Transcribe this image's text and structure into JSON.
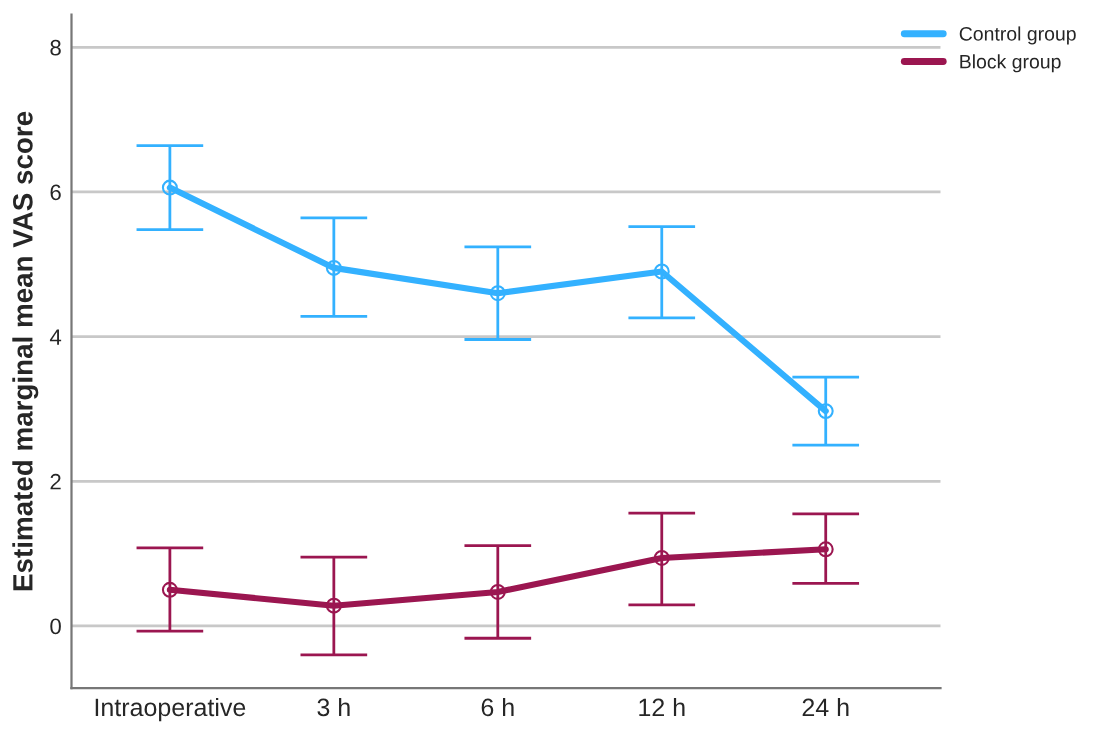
{
  "chart_data": {
    "type": "line",
    "ylabel": "Estimated marginal mean VAS score",
    "categories": [
      "Intraoperative",
      "3 h",
      "6 h",
      "12 h",
      "24 h"
    ],
    "series": [
      {
        "name": "Control group",
        "color": "#33b1ff",
        "values": [
          6.06,
          4.95,
          4.6,
          4.9,
          2.97
        ],
        "errors": [
          [
            5.48,
            6.64
          ],
          [
            4.28,
            5.64
          ],
          [
            3.96,
            5.24
          ],
          [
            4.26,
            5.52
          ],
          [
            2.5,
            3.44
          ]
        ]
      },
      {
        "name": "Block group",
        "color": "#9b1650",
        "values": [
          0.5,
          0.28,
          0.47,
          0.94,
          1.06
        ],
        "errors": [
          [
            -0.07,
            1.08
          ],
          [
            -0.4,
            0.95
          ],
          [
            -0.17,
            1.11
          ],
          [
            0.29,
            1.56
          ],
          [
            0.59,
            1.55
          ]
        ]
      }
    ],
    "ylim": [
      -0.86,
      8.45
    ],
    "yticks": [
      0,
      2,
      4,
      6,
      8
    ],
    "grid": "y",
    "legend": "top right",
    "marker": "circle",
    "line_style": "solid"
  }
}
